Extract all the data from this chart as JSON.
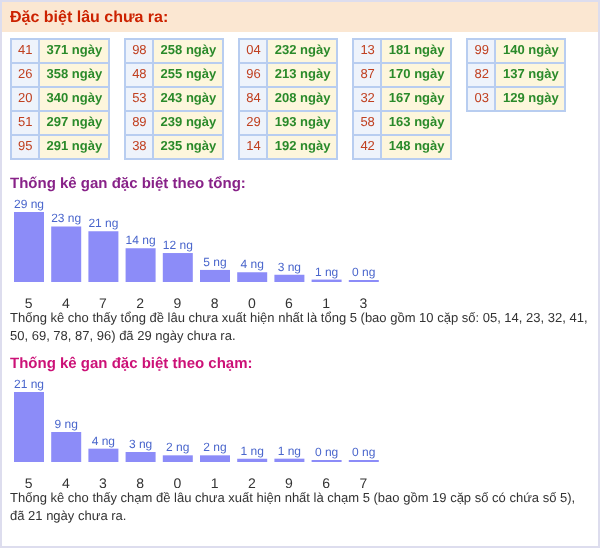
{
  "chart_data": [
    {
      "type": "other",
      "title": "Đặc biệt lâu chưa ra:",
      "categories": [
        "41",
        "26",
        "20",
        "51",
        "95",
        "98",
        "48",
        "53",
        "89",
        "38",
        "04",
        "96",
        "84",
        "29",
        "14",
        "13",
        "87",
        "32",
        "58",
        "42",
        "99",
        "82",
        "03"
      ],
      "value_labels": [
        "371 ngày",
        "358 ngày",
        "340 ngày",
        "297 ngày",
        "291 ngày",
        "258 ngày",
        "255 ngày",
        "243 ngày",
        "239 ngày",
        "235 ngày",
        "232 ngày",
        "213 ngày",
        "208 ngày",
        "193 ngày",
        "192 ngày",
        "181 ngày",
        "170 ngày",
        "167 ngày",
        "163 ngày",
        "148 ngày",
        "140 ngày",
        "137 ngày",
        "129 ngày"
      ]
    },
    {
      "type": "bar",
      "title": "Thống kê gan đặc biệt theo tổng:",
      "color": "#8c8cf8",
      "categories": [
        "5",
        "4",
        "7",
        "2",
        "9",
        "8",
        "0",
        "6",
        "1",
        "3"
      ],
      "values": [
        29,
        23,
        21,
        14,
        12,
        5,
        4,
        3,
        1,
        0
      ],
      "value_labels": [
        "29 ng",
        "23 ng",
        "21 ng",
        "14 ng",
        "12 ng",
        "5 ng",
        "4 ng",
        "3 ng",
        "1 ng",
        "0 ng"
      ],
      "annotations": [
        "Thống kê cho thấy tổng đề lâu chưa xuất hiện nhất là tổng 5 (bao gồm 10 cặp số: 05, 14, 23, 32, 41, 50, 69, 78, 87, 96) đã 29 ngày chưa ra."
      ]
    },
    {
      "type": "bar",
      "title": "Thống kê gan đặc biệt theo chạm:",
      "color": "#8c8cf8",
      "categories": [
        "5",
        "4",
        "3",
        "8",
        "0",
        "1",
        "2",
        "9",
        "6",
        "7"
      ],
      "values": [
        21,
        9,
        4,
        3,
        2,
        2,
        1,
        1,
        0,
        0
      ],
      "value_labels": [
        "21 ng",
        "9 ng",
        "4 ng",
        "3 ng",
        "2 ng",
        "2 ng",
        "1 ng",
        "1 ng",
        "0 ng",
        "0 ng"
      ],
      "annotations": [
        "Thống kê cho thấy chạm đề lâu chưa xuất hiện nhất là chạm 5 (bao gồm 19 cặp số có chứa số 5), đã 21 ngày chưa ra."
      ]
    }
  ]
}
